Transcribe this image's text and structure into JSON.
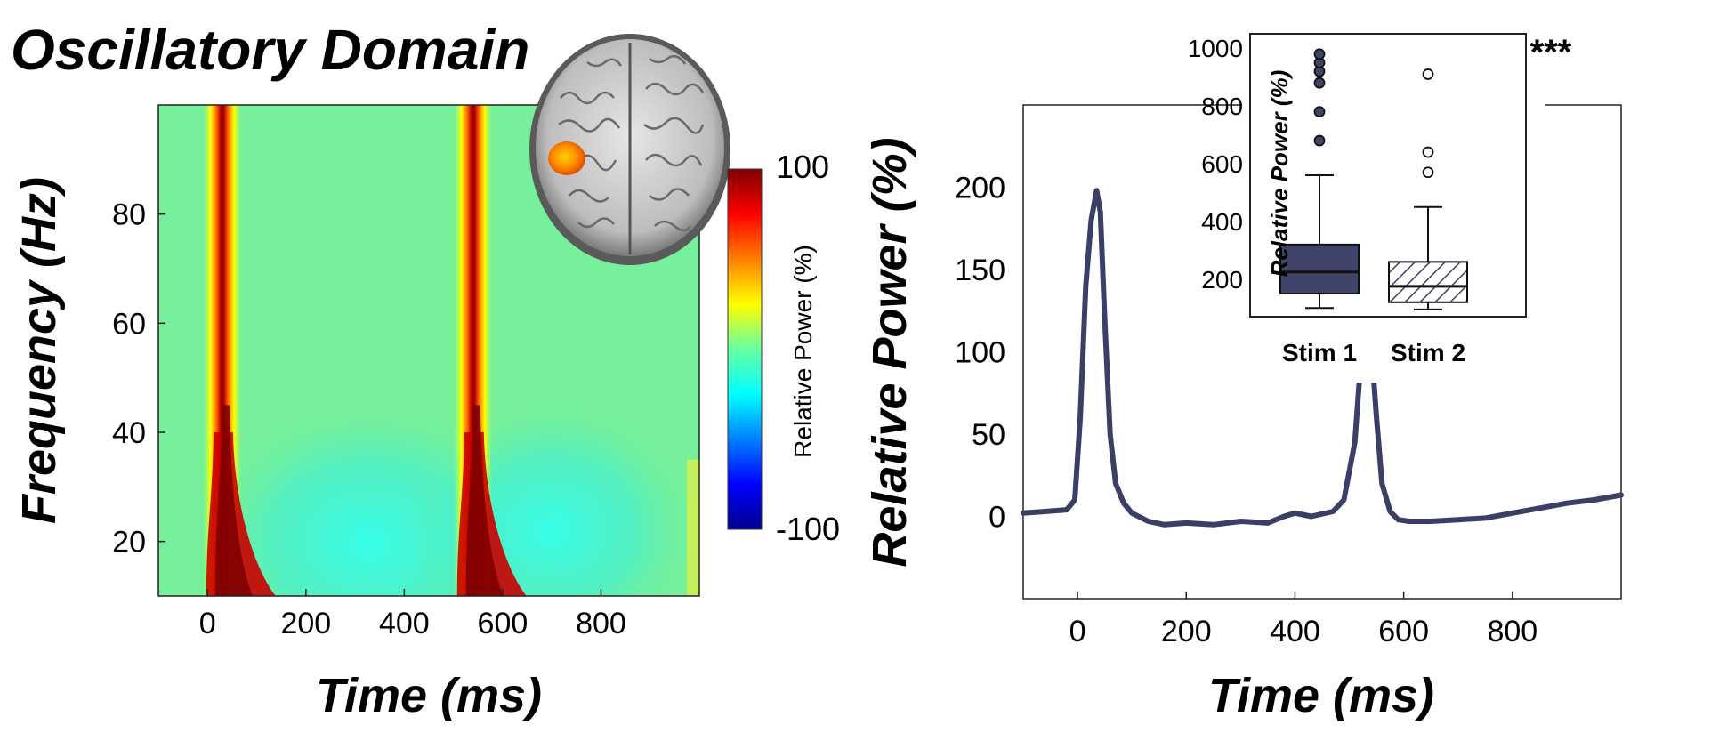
{
  "figure": {
    "title": "Oscillatory Domain"
  },
  "chart_data": [
    {
      "type": "heatmap",
      "xlabel": "Time (ms)",
      "ylabel": "Frequency (Hz)",
      "xlim": [
        -100,
        1000
      ],
      "ylim": [
        10,
        100
      ],
      "xticks": [
        "0",
        "200",
        "400",
        "600",
        "800"
      ],
      "yticks": [
        "20",
        "40",
        "60",
        "80"
      ],
      "colorbar": {
        "label": "Relative Power (%)",
        "max_label": "100",
        "min_label": "-100",
        "range": [
          -100,
          100
        ],
        "colormap": "jet"
      },
      "bursts": [
        {
          "time_ms": 30,
          "freq_range_hz": [
            10,
            100
          ],
          "value": 100
        },
        {
          "time_ms": 540,
          "freq_range_hz": [
            10,
            100
          ],
          "value": 100
        }
      ],
      "background": {
        "early_value": 25,
        "late_low_freq_value": -20
      },
      "inset": {
        "type": "brain-axial",
        "highlight": "left hemisphere region",
        "highlight_color": "#f47a00"
      }
    },
    {
      "type": "line",
      "xlabel": "Time (ms)",
      "ylabel": "Relative Power (%)",
      "xlim": [
        -100,
        1000
      ],
      "ylim": [
        -50,
        250
      ],
      "xticks": [
        "0",
        "200",
        "400",
        "600",
        "800"
      ],
      "yticks": [
        "0",
        "50",
        "100",
        "150",
        "200"
      ],
      "series": [
        {
          "color": "#3b3f66",
          "x": [
            -100,
            -60,
            -20,
            -5,
            5,
            15,
            25,
            35,
            42,
            50,
            60,
            70,
            85,
            100,
            130,
            160,
            200,
            250,
            300,
            350,
            380,
            400,
            430,
            470,
            490,
            510,
            520,
            530,
            540,
            550,
            560,
            575,
            590,
            610,
            650,
            700,
            750,
            800,
            850,
            900,
            950,
            1000
          ],
          "y": [
            2,
            3,
            4,
            10,
            60,
            140,
            180,
            198,
            185,
            120,
            50,
            20,
            8,
            2,
            -3,
            -5,
            -4,
            -5,
            -3,
            -4,
            0,
            2,
            0,
            3,
            10,
            45,
            90,
            118,
            105,
            60,
            20,
            3,
            -2,
            -3,
            -3,
            -2,
            -1,
            2,
            5,
            8,
            10,
            13
          ]
        }
      ],
      "inset": {
        "type": "box",
        "ylabel": "Relative Power (%)",
        "yticks": [
          "200",
          "400",
          "600",
          "800",
          "1000"
        ],
        "ylim": [
          70,
          1050
        ],
        "categories": [
          "Stim 1",
          "Stim 2"
        ],
        "significance": "***",
        "boxes": [
          {
            "name": "Stim 1",
            "whisker_low": 100,
            "q1": 150,
            "median": 225,
            "q3": 320,
            "whisker_high": 560,
            "outliers": [
              680,
              780,
              880,
              920,
              950,
              980
            ],
            "fill": "#3f4468",
            "pattern": "solid"
          },
          {
            "name": "Stim 2",
            "whisker_low": 95,
            "q1": 120,
            "median": 175,
            "q3": 260,
            "whisker_high": 450,
            "outliers": [
              570,
              640,
              910
            ],
            "fill": "#ffffff",
            "pattern": "hatched"
          }
        ]
      }
    }
  ]
}
